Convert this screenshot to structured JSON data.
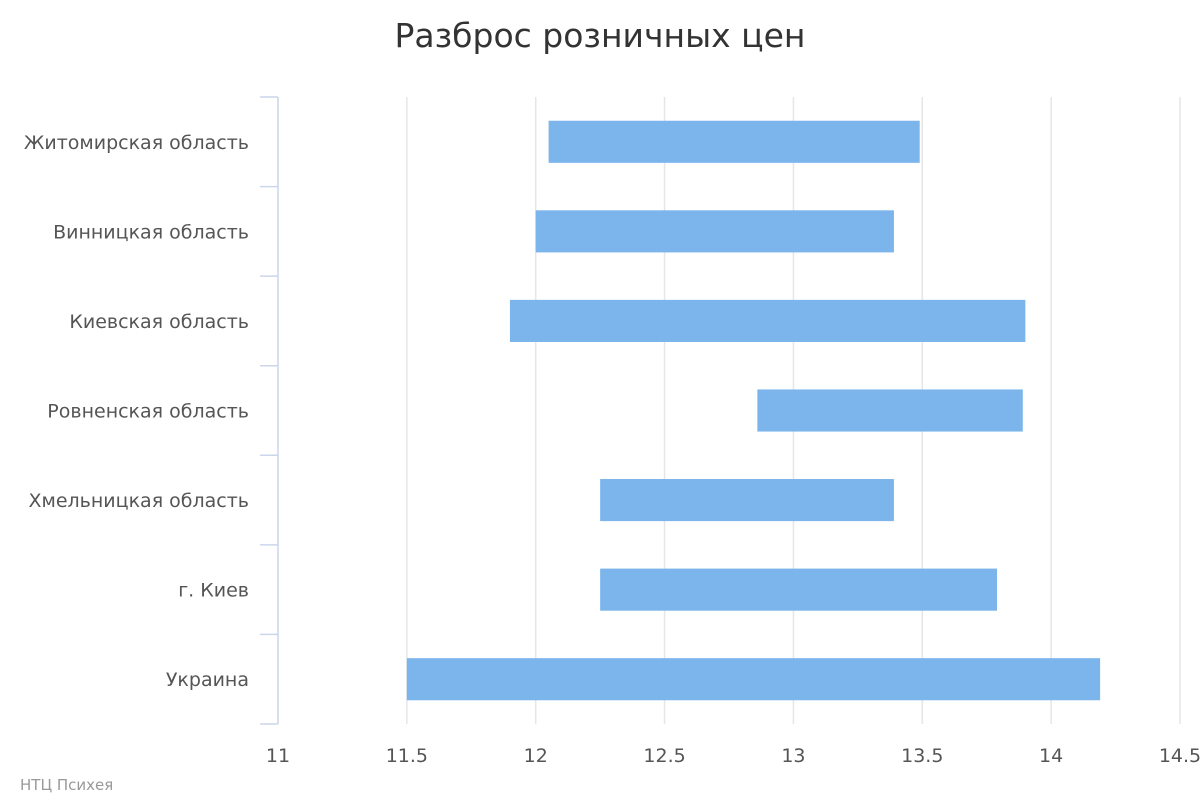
{
  "chart_data": {
    "type": "bar",
    "orientation": "horizontal",
    "subtype": "columnrange",
    "title": "Разброс розничных цен",
    "categories": [
      "Житомирская область",
      "Винницкая область",
      "Киевская область",
      "Ровненская область",
      "Хмельницкая область",
      "г. Киев",
      "Украина"
    ],
    "ranges": [
      [
        12.05,
        13.49
      ],
      [
        12.0,
        13.39
      ],
      [
        11.9,
        13.9
      ],
      [
        12.86,
        13.89
      ],
      [
        12.25,
        13.39
      ],
      [
        12.25,
        13.79
      ],
      [
        11.5,
        14.19
      ]
    ],
    "x_ticks": [
      "11",
      "11.5",
      "12",
      "12.5",
      "13",
      "13.5",
      "14",
      "14.5"
    ],
    "xlim": [
      11,
      14.5
    ],
    "xlabel": "",
    "ylabel": "",
    "grid": true,
    "legend": "none",
    "bar_color": "#7cb5ec",
    "grid_color": "#e6e6e6",
    "axis_color": "#ccd6eb",
    "credits": "НТЦ Психея"
  }
}
